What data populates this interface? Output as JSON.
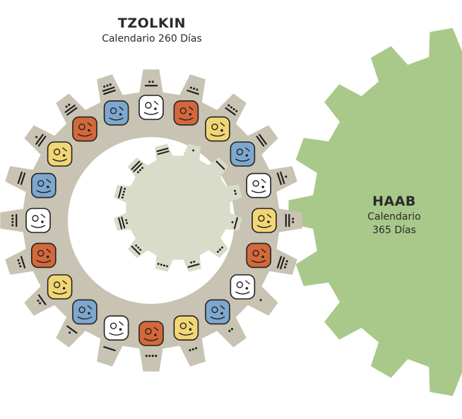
{
  "tzolkin": {
    "title": "TZOLKIN",
    "subtitle": "Calendario 260 Días",
    "colors": {
      "ring": "#c8c3b3",
      "inner_gear": "#d8dcc8",
      "ink": "#1e1e1e"
    },
    "numbers": [
      7,
      8,
      9,
      10,
      11,
      12,
      13,
      1,
      2,
      3,
      4,
      5,
      6,
      7,
      8,
      9,
      10,
      11,
      12,
      13
    ],
    "glyphs": [
      {
        "color": "#ffffff",
        "icon": "white-glyph-icon"
      },
      {
        "color": "#d4683b",
        "icon": "red-glyph-icon"
      },
      {
        "color": "#f2d675",
        "icon": "yellow-glyph-icon"
      },
      {
        "color": "#7ea7cf",
        "icon": "blue-glyph-icon"
      },
      {
        "color": "#ffffff",
        "icon": "white-glyph-icon"
      },
      {
        "color": "#f2d675",
        "icon": "yellow-glyph-icon"
      },
      {
        "color": "#d4683b",
        "icon": "red-glyph-icon"
      },
      {
        "color": "#ffffff",
        "icon": "white-glyph-icon"
      },
      {
        "color": "#7ea7cf",
        "icon": "blue-glyph-icon"
      },
      {
        "color": "#f2d675",
        "icon": "yellow-glyph-icon"
      },
      {
        "color": "#d4683b",
        "icon": "red-glyph-icon"
      },
      {
        "color": "#ffffff",
        "icon": "white-glyph-icon"
      },
      {
        "color": "#7ea7cf",
        "icon": "blue-glyph-icon"
      },
      {
        "color": "#f2d675",
        "icon": "yellow-glyph-icon"
      },
      {
        "color": "#d4683b",
        "icon": "red-glyph-icon"
      },
      {
        "color": "#ffffff",
        "icon": "white-glyph-icon"
      },
      {
        "color": "#7ea7cf",
        "icon": "blue-glyph-icon"
      },
      {
        "color": "#f2d675",
        "icon": "yellow-glyph-icon"
      },
      {
        "color": "#d4683b",
        "icon": "red-glyph-icon"
      },
      {
        "color": "#7ea7cf",
        "icon": "blue-glyph-icon"
      }
    ],
    "inner_numbers": [
      1,
      5,
      2,
      6,
      3,
      7,
      4,
      8,
      12,
      9,
      13,
      10
    ]
  },
  "haab": {
    "title": "HAAB",
    "subtitle_line1": "Calendario",
    "subtitle_line2": "365 Días",
    "color": "#a9c98a"
  }
}
